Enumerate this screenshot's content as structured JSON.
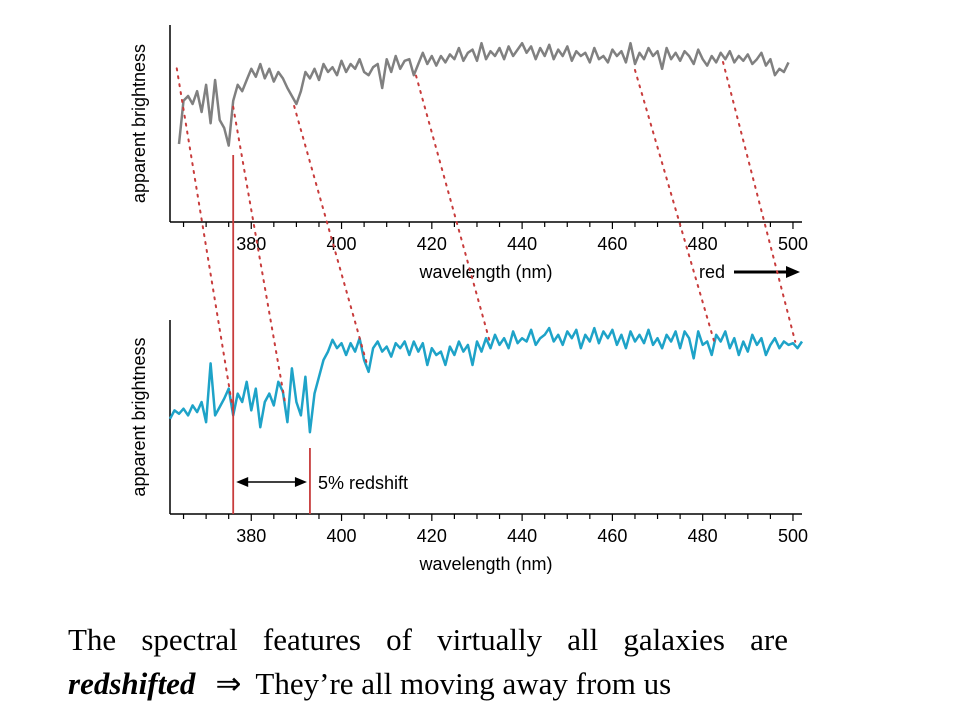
{
  "chart_data": [
    {
      "type": "line",
      "title": "",
      "xlabel": "wavelength (nm)",
      "ylabel": "apparent brightness",
      "xlim": [
        362,
        502
      ],
      "xticks": [
        380,
        400,
        420,
        440,
        460,
        480,
        500
      ],
      "color": "#808080",
      "direction_label": "red",
      "series": [
        {
          "x": [
            364,
            365,
            366,
            367,
            368,
            369,
            370,
            371,
            372,
            373,
            374,
            375,
            376,
            377,
            378,
            379,
            380,
            381,
            382,
            383,
            384,
            385,
            386,
            387,
            388,
            389,
            390,
            391,
            392,
            393,
            394,
            395,
            396,
            397,
            398,
            399,
            400,
            401,
            402,
            403,
            404,
            405,
            406,
            407,
            408,
            409,
            410,
            411,
            412,
            413,
            414,
            415,
            416,
            417,
            418,
            419,
            420,
            421,
            422,
            423,
            424,
            425,
            426,
            427,
            428,
            429,
            430,
            431,
            432,
            433,
            434,
            435,
            436,
            437,
            438,
            439,
            440,
            441,
            442,
            443,
            444,
            445,
            446,
            447,
            448,
            449,
            450,
            451,
            452,
            453,
            454,
            455,
            456,
            457,
            458,
            459,
            460,
            461,
            462,
            463,
            464,
            465,
            466,
            467,
            468,
            469,
            470,
            471,
            472,
            473,
            474,
            475,
            476,
            477,
            478,
            479,
            480,
            481,
            482,
            483,
            484,
            485,
            486,
            487,
            488,
            489,
            490,
            491,
            492,
            493,
            494,
            495,
            496,
            497,
            498,
            499
          ],
          "values": [
            0.35,
            0.62,
            0.65,
            0.6,
            0.68,
            0.55,
            0.72,
            0.48,
            0.75,
            0.5,
            0.45,
            0.34,
            0.62,
            0.72,
            0.68,
            0.75,
            0.82,
            0.77,
            0.85,
            0.76,
            0.82,
            0.74,
            0.8,
            0.76,
            0.7,
            0.65,
            0.6,
            0.68,
            0.8,
            0.76,
            0.82,
            0.75,
            0.85,
            0.8,
            0.83,
            0.78,
            0.87,
            0.8,
            0.85,
            0.82,
            0.88,
            0.8,
            0.78,
            0.83,
            0.85,
            0.7,
            0.88,
            0.8,
            0.9,
            0.82,
            0.87,
            0.88,
            0.78,
            0.85,
            0.92,
            0.85,
            0.9,
            0.84,
            0.9,
            0.86,
            0.91,
            0.88,
            0.95,
            0.87,
            0.92,
            0.94,
            0.87,
            0.98,
            0.88,
            0.93,
            0.9,
            0.95,
            0.88,
            0.96,
            0.9,
            0.94,
            0.98,
            0.92,
            0.96,
            0.88,
            0.95,
            0.9,
            0.97,
            0.88,
            0.94,
            0.9,
            0.96,
            0.87,
            0.93,
            0.9,
            0.92,
            0.86,
            0.95,
            0.88,
            0.9,
            0.86,
            0.94,
            0.9,
            0.93,
            0.86,
            0.98,
            0.85,
            0.92,
            0.88,
            0.95,
            0.9,
            0.93,
            0.82,
            0.95,
            0.88,
            0.92,
            0.87,
            0.93,
            0.9,
            0.85,
            0.94,
            0.88,
            0.84,
            0.9,
            0.86,
            0.92,
            0.88,
            0.93,
            0.86,
            0.9,
            0.87,
            0.91,
            0.85,
            0.88,
            0.92,
            0.84,
            0.88,
            0.78,
            0.82,
            0.8,
            0.86
          ]
        }
      ]
    },
    {
      "type": "line",
      "title": "",
      "xlabel": "wavelength (nm)",
      "ylabel": "apparent brightness",
      "xlim": [
        362,
        502
      ],
      "xticks": [
        380,
        400,
        420,
        440,
        460,
        480,
        500
      ],
      "color": "#1ea3c8",
      "annotation": "5% redshift",
      "marker_lines": [
        376,
        393
      ],
      "series": [
        {
          "x": [
            362,
            363,
            364,
            365,
            366,
            367,
            368,
            369,
            370,
            371,
            372,
            373,
            374,
            375,
            376,
            377,
            378,
            379,
            380,
            381,
            382,
            383,
            384,
            385,
            386,
            387,
            388,
            389,
            390,
            391,
            392,
            393,
            394,
            395,
            396,
            397,
            398,
            399,
            400,
            401,
            402,
            403,
            404,
            405,
            406,
            407,
            408,
            409,
            410,
            411,
            412,
            413,
            414,
            415,
            416,
            417,
            418,
            419,
            420,
            421,
            422,
            423,
            424,
            425,
            426,
            427,
            428,
            429,
            430,
            431,
            432,
            433,
            434,
            435,
            436,
            437,
            438,
            439,
            440,
            441,
            442,
            443,
            444,
            445,
            446,
            447,
            448,
            449,
            450,
            451,
            452,
            453,
            454,
            455,
            456,
            457,
            458,
            459,
            460,
            461,
            462,
            463,
            464,
            465,
            466,
            467,
            468,
            469,
            470,
            471,
            472,
            473,
            474,
            475,
            476,
            477,
            478,
            479,
            480,
            481,
            482,
            483,
            484,
            485,
            486,
            487,
            488,
            489,
            490,
            491,
            492,
            493,
            494,
            495,
            496,
            497,
            498,
            499,
            500,
            501,
            502
          ],
          "values": [
            0.4,
            0.45,
            0.43,
            0.46,
            0.42,
            0.48,
            0.44,
            0.5,
            0.38,
            0.73,
            0.42,
            0.47,
            0.52,
            0.58,
            0.42,
            0.55,
            0.5,
            0.62,
            0.45,
            0.58,
            0.35,
            0.5,
            0.55,
            0.48,
            0.62,
            0.56,
            0.38,
            0.7,
            0.5,
            0.42,
            0.65,
            0.32,
            0.55,
            0.65,
            0.75,
            0.8,
            0.87,
            0.82,
            0.85,
            0.78,
            0.85,
            0.8,
            0.88,
            0.75,
            0.68,
            0.82,
            0.86,
            0.8,
            0.83,
            0.77,
            0.85,
            0.82,
            0.86,
            0.78,
            0.86,
            0.8,
            0.85,
            0.72,
            0.82,
            0.78,
            0.8,
            0.72,
            0.83,
            0.78,
            0.86,
            0.8,
            0.84,
            0.72,
            0.86,
            0.8,
            0.88,
            0.82,
            0.9,
            0.84,
            0.88,
            0.82,
            0.92,
            0.85,
            0.88,
            0.86,
            0.93,
            0.84,
            0.88,
            0.9,
            0.94,
            0.86,
            0.9,
            0.84,
            0.92,
            0.88,
            0.93,
            0.82,
            0.9,
            0.86,
            0.94,
            0.85,
            0.92,
            0.88,
            0.93,
            0.84,
            0.9,
            0.82,
            0.92,
            0.86,
            0.9,
            0.85,
            0.93,
            0.84,
            0.88,
            0.82,
            0.9,
            0.86,
            0.92,
            0.82,
            0.92,
            0.88,
            0.76,
            0.92,
            0.84,
            0.86,
            0.78,
            0.9,
            0.86,
            0.92,
            0.82,
            0.88,
            0.78,
            0.86,
            0.8,
            0.9,
            0.84,
            0.88,
            0.78,
            0.84,
            0.88,
            0.82,
            0.86,
            0.84,
            0.85,
            0.82,
            0.86
          ]
        }
      ]
    }
  ],
  "feature_links": [
    [
      363.5,
      376
    ],
    [
      376,
      387.5
    ],
    [
      389.5,
      405.5
    ],
    [
      416.5,
      433
    ],
    [
      465,
      482.5
    ],
    [
      484.5,
      500.5
    ]
  ],
  "caption": {
    "line1_words": [
      "The",
      "spectral",
      "features",
      "of",
      "virtually",
      "all",
      "galaxies",
      "are"
    ],
    "line2_emph": "redshifted",
    "line2_arrow": "⇒",
    "line2_rest": "They’re all moving away from us"
  }
}
